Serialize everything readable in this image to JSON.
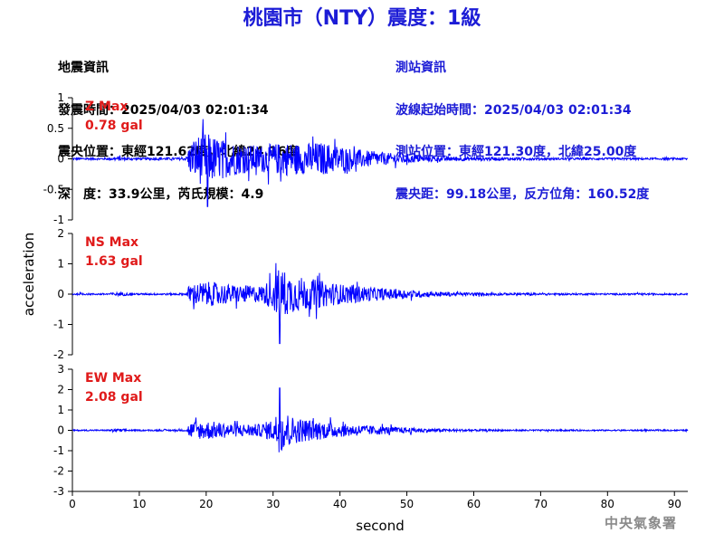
{
  "title": "桃園市（NTY）震度：1級",
  "earthquake_info": [
    "地震資訊",
    "發震時間：2025/04/03 02:01:34",
    "震央位置：東經121.62度，北緯24.16度",
    "深　度：33.9公里，芮氏規模：4.9"
  ],
  "station_info": [
    "測站資訊",
    "波線起始時間：2025/04/03 02:01:34",
    "測站位置：東經121.30度，北緯25.00度",
    "震央距：99.18公里，反方位角：160.52度"
  ],
  "watermark": "中央氣象署",
  "colors": {
    "title": "#1c1cd6",
    "trace": "#0000ff",
    "panel_label": "#e01a1a",
    "axis": "#000000"
  },
  "chart_data": {
    "type": "line",
    "xlabel": "second",
    "ylabel": "acceleration",
    "xlim": [
      0,
      92
    ],
    "xticks": [
      0,
      10,
      20,
      30,
      40,
      50,
      60,
      70,
      80,
      90
    ],
    "grid": false,
    "panels": [
      {
        "name": "Z",
        "label_line1": "Z Max",
        "label_line2": "0.78 gal",
        "max_gal": 0.78,
        "ylim": [
          -1,
          1
        ],
        "yticks": [
          -1,
          -0.5,
          0,
          0.5,
          1
        ],
        "envelope": [
          [
            0,
            0.03
          ],
          [
            5,
            0.03
          ],
          [
            7,
            0.06
          ],
          [
            9,
            0.03
          ],
          [
            17,
            0.04
          ],
          [
            17.5,
            0.45
          ],
          [
            19,
            0.75
          ],
          [
            20,
            0.78
          ],
          [
            22,
            0.6
          ],
          [
            25,
            0.45
          ],
          [
            28,
            0.4
          ],
          [
            30,
            0.45
          ],
          [
            32,
            0.5
          ],
          [
            34,
            0.45
          ],
          [
            37,
            0.5
          ],
          [
            40,
            0.4
          ],
          [
            42,
            0.3
          ],
          [
            45,
            0.22
          ],
          [
            48,
            0.16
          ],
          [
            52,
            0.1
          ],
          [
            56,
            0.07
          ],
          [
            62,
            0.05
          ],
          [
            70,
            0.035
          ],
          [
            80,
            0.03
          ],
          [
            92,
            0.03
          ]
        ]
      },
      {
        "name": "NS",
        "label_line1": "NS Max",
        "label_line2": "1.63 gal",
        "max_gal": 1.63,
        "ylim": [
          -2,
          2
        ],
        "yticks": [
          -2,
          -1,
          0,
          1,
          2
        ],
        "envelope": [
          [
            0,
            0.05
          ],
          [
            5,
            0.05
          ],
          [
            7,
            0.12
          ],
          [
            9,
            0.05
          ],
          [
            17,
            0.06
          ],
          [
            17.5,
            0.6
          ],
          [
            20,
            0.75
          ],
          [
            24,
            0.55
          ],
          [
            28,
            0.5
          ],
          [
            30,
            0.9
          ],
          [
            31,
            1.63
          ],
          [
            33,
            1.1
          ],
          [
            36,
            0.9
          ],
          [
            40,
            0.6
          ],
          [
            44,
            0.45
          ],
          [
            48,
            0.3
          ],
          [
            52,
            0.2
          ],
          [
            56,
            0.12
          ],
          [
            62,
            0.08
          ],
          [
            70,
            0.06
          ],
          [
            80,
            0.05
          ],
          [
            92,
            0.05
          ]
        ]
      },
      {
        "name": "EW",
        "label_line1": "EW Max",
        "label_line2": "2.08 gal",
        "max_gal": 2.08,
        "ylim": [
          -3,
          3
        ],
        "yticks": [
          -3,
          -2,
          -1,
          0,
          1,
          2,
          3
        ],
        "envelope": [
          [
            0,
            0.06
          ],
          [
            5,
            0.06
          ],
          [
            7,
            0.14
          ],
          [
            9,
            0.06
          ],
          [
            17,
            0.08
          ],
          [
            17.5,
            0.7
          ],
          [
            20,
            0.85
          ],
          [
            24,
            0.6
          ],
          [
            28,
            0.55
          ],
          [
            30,
            1.0
          ],
          [
            31,
            2.08
          ],
          [
            33,
            1.2
          ],
          [
            36,
            0.9
          ],
          [
            40,
            0.6
          ],
          [
            44,
            0.45
          ],
          [
            48,
            0.3
          ],
          [
            52,
            0.2
          ],
          [
            56,
            0.12
          ],
          [
            62,
            0.08
          ],
          [
            70,
            0.07
          ],
          [
            80,
            0.06
          ],
          [
            92,
            0.06
          ]
        ]
      }
    ]
  }
}
